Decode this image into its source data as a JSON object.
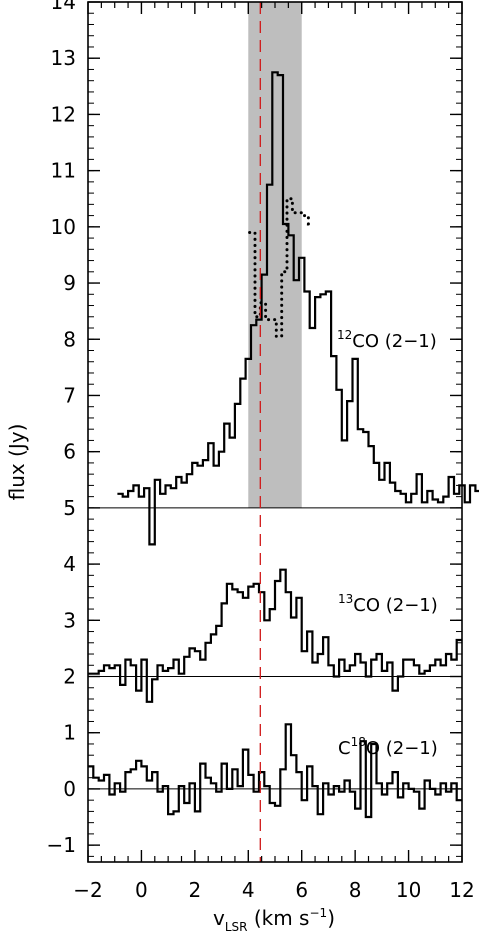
{
  "chart_data": {
    "type": "line",
    "xlabel": {
      "main": "v",
      "sub": "LSR",
      "units": "(km s",
      "exp": "−1",
      "close": ")"
    },
    "ylabel": "flux (Jy)",
    "xlim": [
      -2,
      12
    ],
    "ylim": [
      -1.3,
      14
    ],
    "xticks": [
      -2,
      0,
      2,
      4,
      6,
      8,
      10,
      12
    ],
    "yticks": [
      -1,
      0,
      1,
      2,
      3,
      4,
      5,
      6,
      7,
      8,
      9,
      10,
      11,
      12,
      13,
      14
    ],
    "xtick_labels": [
      "−2",
      "0",
      "2",
      "4",
      "6",
      "8",
      "10",
      "12"
    ],
    "ytick_labels": [
      "−1",
      "0",
      "1",
      "2",
      "3",
      "4",
      "5",
      "6",
      "7",
      "8",
      "9",
      "10",
      "11",
      "12",
      "13",
      "14"
    ],
    "shaded_band": {
      "x": [
        4.0,
        6.0
      ],
      "color": "#bebebe"
    },
    "reference_line": {
      "x": 4.45,
      "color": "#d01818",
      "style": "dashed"
    },
    "colors": {
      "spectra": "#000000",
      "baseline": "#000000",
      "band": "#bebebe",
      "reference": "#d01818"
    },
    "bin_width": 0.2,
    "series": [
      {
        "name": "12CO (2−1)",
        "label_iso": "12",
        "label_pre": "",
        "label_post": "CO (2−1)",
        "baseline": 5.0,
        "style": "step",
        "x_start": -0.9,
        "y": [
          5.25,
          5.2,
          5.3,
          5.4,
          5.2,
          5.35,
          4.35,
          5.5,
          5.25,
          5.4,
          5.35,
          5.55,
          5.45,
          5.6,
          5.8,
          5.75,
          5.85,
          6.15,
          5.75,
          6.0,
          6.5,
          6.25,
          6.85,
          7.3,
          7.65,
          8.25,
          8.35,
          9.15,
          10.75,
          12.75,
          12.7,
          10.05,
          9.85,
          9.05,
          9.45,
          8.85,
          8.2,
          8.75,
          8.8,
          8.85,
          7.7,
          7.1,
          6.2,
          6.9,
          7.65,
          6.4,
          6.35,
          6.1,
          5.8,
          5.5,
          5.8,
          5.45,
          5.3,
          5.25,
          5.1,
          5.25,
          5.6,
          5.1,
          5.3,
          5.15,
          5.1,
          5.2,
          5.55,
          5.25,
          5.4,
          5.1,
          5.4,
          5.3,
          5.2,
          5.3,
          5.35,
          5.25,
          5.3,
          5.4
        ]
      },
      {
        "name": "12CO (2−1) dotted",
        "style": "dotted",
        "x_start": 4.05,
        "y": [
          9.9,
          8.4,
          8.65,
          8.35,
          8.35,
          8.05,
          9.2,
          10.5,
          10.25,
          10.25,
          10.2,
          10.05
        ]
      },
      {
        "name": "13CO (2−1)",
        "label_iso": "13",
        "label_pre": "",
        "label_post": "CO (2−1)",
        "baseline": 2.0,
        "style": "step",
        "x_start": -2.0,
        "y": [
          2.05,
          2.05,
          2.1,
          2.2,
          2.15,
          2.2,
          1.85,
          2.3,
          2.2,
          1.75,
          2.3,
          1.55,
          1.95,
          2.2,
          2.1,
          2.15,
          2.3,
          2.05,
          2.35,
          2.5,
          2.45,
          2.3,
          2.6,
          2.75,
          2.9,
          3.3,
          3.65,
          3.55,
          3.5,
          3.4,
          3.6,
          3.65,
          3.5,
          3.0,
          3.2,
          3.7,
          3.9,
          3.5,
          3.05,
          3.4,
          2.45,
          2.8,
          2.25,
          2.4,
          2.7,
          2.2,
          2.0,
          2.3,
          2.1,
          2.2,
          2.4,
          2.25,
          2.0,
          2.3,
          2.4,
          2.1,
          2.25,
          1.75,
          2.0,
          2.3,
          2.3,
          2.2,
          2.05,
          2.1,
          2.2,
          2.3,
          2.2,
          2.4,
          2.3,
          2.65
        ]
      },
      {
        "name": "C18O (2−1)",
        "label_iso": "18",
        "label_pre": "C",
        "label_post": "O (2−1)",
        "baseline": 0.0,
        "style": "step",
        "x_start": -2.0,
        "y": [
          0.4,
          0.2,
          0.15,
          0.25,
          -0.1,
          0.1,
          -0.05,
          0.3,
          0.35,
          0.5,
          0.4,
          0.15,
          0.3,
          -0.05,
          0.05,
          -0.45,
          -0.4,
          0.05,
          -0.25,
          0.1,
          -0.4,
          0.45,
          0.2,
          0.1,
          -0.05,
          0.45,
          0.0,
          0.35,
          0.05,
          0.7,
          0.25,
          -0.05,
          0.3,
          0.05,
          -0.25,
          -0.3,
          0.35,
          1.15,
          0.6,
          0.3,
          -0.2,
          0.4,
          0.05,
          -0.45,
          0.1,
          -0.1,
          0.05,
          -0.05,
          0.15,
          -0.05,
          -0.35,
          0.85,
          -0.5,
          0.8,
          0.1,
          -0.1,
          0.1,
          0.3,
          -0.15,
          0.1,
          0.0,
          -0.05,
          -0.35,
          0.15,
          0.0,
          -0.1,
          0.1,
          -0.05,
          0.1,
          -0.2
        ]
      }
    ]
  }
}
